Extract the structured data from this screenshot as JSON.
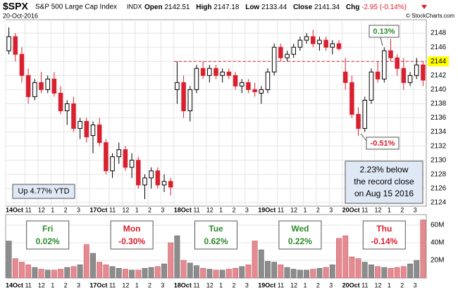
{
  "header": {
    "symbol": "$SPX",
    "name": "S&P 500 Large Cap Index",
    "exchange": "INDX",
    "date": "20-Oct-2016",
    "open_label": "Open",
    "open": "2142.51",
    "high_label": "High",
    "high": "2147.18",
    "low_label": "Low",
    "low": "2133.44",
    "close_label": "Close",
    "close": "2141.34",
    "chg_label": "Chg",
    "chg": "-2.95 (-0.14%)",
    "brand": "© StockCharts.com"
  },
  "chart_data": [
    {
      "type": "candlestick",
      "xlim": [
        0,
        65
      ],
      "ylim": [
        2123.5,
        2149.9
      ],
      "yticks": [
        2124,
        2126,
        2128,
        2130,
        2132,
        2134,
        2136,
        2138,
        2140,
        2142,
        2144,
        2146,
        2148
      ],
      "xticks": [
        {
          "value": 0,
          "label": "14Oct"
        },
        {
          "value": 3,
          "label": "11"
        },
        {
          "value": 5,
          "label": "12"
        },
        {
          "value": 7,
          "label": "1"
        },
        {
          "value": 9,
          "label": "2"
        },
        {
          "value": 11,
          "label": "3"
        },
        {
          "value": 13,
          "label": "17Oct"
        },
        {
          "value": 16,
          "label": "11"
        },
        {
          "value": 18,
          "label": "12"
        },
        {
          "value": 20,
          "label": "1"
        },
        {
          "value": 22,
          "label": "2"
        },
        {
          "value": 24,
          "label": "3"
        },
        {
          "value": 26,
          "label": "18Oct"
        },
        {
          "value": 29,
          "label": "11"
        },
        {
          "value": 31,
          "label": "12"
        },
        {
          "value": 33,
          "label": "1"
        },
        {
          "value": 35,
          "label": "2"
        },
        {
          "value": 37,
          "label": "3"
        },
        {
          "value": 39,
          "label": "19Oct"
        },
        {
          "value": 42,
          "label": "11"
        },
        {
          "value": 44,
          "label": "12"
        },
        {
          "value": 46,
          "label": "1"
        },
        {
          "value": 48,
          "label": "2"
        },
        {
          "value": 50,
          "label": "3"
        },
        {
          "value": 52,
          "label": "20Oct"
        },
        {
          "value": 55,
          "label": "11"
        },
        {
          "value": 57,
          "label": "12"
        },
        {
          "value": 59,
          "label": "1"
        },
        {
          "value": 61,
          "label": "2"
        },
        {
          "value": 63,
          "label": "3"
        }
      ],
      "up_color": "#000000",
      "down_color": "#d9202e",
      "grid": true,
      "candles": [
        [
          2145.5,
          2148.8,
          2145,
          2147.5
        ],
        [
          2147.5,
          2148,
          2144,
          2145
        ],
        [
          2145,
          2146,
          2141,
          2142
        ],
        [
          2142,
          2143,
          2138,
          2139
        ],
        [
          2139,
          2141.5,
          2138.5,
          2141
        ],
        [
          2141,
          2142.5,
          2139.5,
          2140
        ],
        [
          2140,
          2142,
          2139.5,
          2141.5
        ],
        [
          2141.5,
          2142.5,
          2139,
          2139.5
        ],
        [
          2139.5,
          2140.5,
          2136.5,
          2137
        ],
        [
          2137,
          2138.5,
          2135,
          2138
        ],
        [
          2138,
          2139,
          2134,
          2134.5
        ],
        [
          2134.5,
          2136,
          2133,
          2135.5
        ],
        [
          2135.5,
          2136,
          2132.5,
          2133.3
        ],
        [
          2133.5,
          2135.5,
          2131,
          2135
        ],
        [
          2135,
          2136,
          2132,
          2132.5
        ],
        [
          2132.5,
          2133,
          2128,
          2128.5
        ],
        [
          2128.5,
          2131,
          2127.5,
          2130.5
        ],
        [
          2130.5,
          2132.5,
          2129.5,
          2131.5
        ],
        [
          2131.5,
          2132,
          2128.5,
          2129
        ],
        [
          2129,
          2131,
          2127.5,
          2130
        ],
        [
          2130,
          2130.5,
          2126,
          2126.5
        ],
        [
          2126.5,
          2128,
          2124.5,
          2127.5
        ],
        [
          2127.5,
          2129,
          2126,
          2128.5
        ],
        [
          2128.5,
          2129,
          2126,
          2126.5
        ],
        [
          2126.5,
          2128,
          2125.5,
          2127
        ],
        [
          2127,
          2127.5,
          2125,
          2126.2
        ],
        [
          2140,
          2144,
          2138,
          2141
        ],
        [
          2141,
          2142,
          2136,
          2137
        ],
        [
          2137,
          2140.5,
          2135.5,
          2140
        ],
        [
          2140,
          2143.5,
          2139.5,
          2143
        ],
        [
          2143,
          2144,
          2141.5,
          2142
        ],
        [
          2142,
          2143.5,
          2141,
          2143
        ],
        [
          2143,
          2143.5,
          2141.5,
          2142
        ],
        [
          2142,
          2143,
          2141,
          2142.5
        ],
        [
          2142.5,
          2143,
          2141.5,
          2142
        ],
        [
          2142,
          2142.5,
          2140,
          2140.5
        ],
        [
          2140.5,
          2141.5,
          2139.5,
          2141
        ],
        [
          2141,
          2141.5,
          2139.5,
          2140
        ],
        [
          2140,
          2141,
          2139,
          2139.7
        ],
        [
          2139.5,
          2140.5,
          2138,
          2140
        ],
        [
          2140,
          2143,
          2139.5,
          2142.5
        ],
        [
          2142.5,
          2146.5,
          2142,
          2146
        ],
        [
          2146,
          2146.5,
          2144,
          2144.5
        ],
        [
          2144.5,
          2145.5,
          2144,
          2145
        ],
        [
          2145,
          2146.5,
          2144.5,
          2146
        ],
        [
          2146,
          2147.5,
          2145.5,
          2147
        ],
        [
          2147,
          2148,
          2146.5,
          2147.5
        ],
        [
          2147.5,
          2148.5,
          2146,
          2146.5
        ],
        [
          2146.5,
          2147.5,
          2145.5,
          2147
        ],
        [
          2147,
          2147.5,
          2145.5,
          2146
        ],
        [
          2146,
          2147,
          2145,
          2146.5
        ],
        [
          2146.5,
          2147,
          2145.5,
          2145.8
        ],
        [
          2142.5,
          2144.5,
          2140,
          2141
        ],
        [
          2141,
          2142,
          2136,
          2136.5
        ],
        [
          2136.5,
          2137.5,
          2133.44,
          2134.5
        ],
        [
          2134.5,
          2139,
          2134,
          2138.5
        ],
        [
          2138.5,
          2143,
          2138,
          2142.5
        ],
        [
          2142.5,
          2144,
          2141,
          2141.5
        ],
        [
          2141.5,
          2146,
          2141,
          2145.5
        ],
        [
          2145.5,
          2147.18,
          2144,
          2144.5
        ],
        [
          2144.5,
          2145,
          2142,
          2143
        ],
        [
          2143,
          2144.5,
          2140,
          2141
        ],
        [
          2141,
          2142.5,
          2140.5,
          2142
        ],
        [
          2142,
          2144.5,
          2141.5,
          2143.5
        ],
        [
          2143.5,
          2144,
          2140.5,
          2141.34
        ]
      ],
      "reference_line": {
        "value": 2144,
        "color": "#d9202e",
        "label_color": "#ffff00"
      },
      "annotations": {
        "high": "0.13%",
        "low": "-0.51%",
        "record": [
          "2.23% below",
          "the record close",
          "on Aug 15 2016"
        ],
        "ytd": "Up 4.77% YTD"
      }
    },
    {
      "type": "volume",
      "xlim": [
        0,
        65
      ],
      "ylim": [
        0,
        72000000
      ],
      "yticks": [
        {
          "value": 20000000,
          "label": "20M"
        },
        {
          "value": 40000000,
          "label": "40M"
        },
        {
          "value": 60000000,
          "label": "60M"
        }
      ],
      "up_color": "#8c8c8c",
      "down_color": "#e58a90",
      "values": [
        42000000,
        22000000,
        18000000,
        15000000,
        12000000,
        10000000,
        9000000,
        9000000,
        10000000,
        12000000,
        13000000,
        15000000,
        38000000,
        28000000,
        18000000,
        15000000,
        13000000,
        11000000,
        10000000,
        9000000,
        9000000,
        11000000,
        12000000,
        13000000,
        16000000,
        40000000,
        48000000,
        20000000,
        17000000,
        14000000,
        11000000,
        10000000,
        9000000,
        9000000,
        10000000,
        11000000,
        13000000,
        15000000,
        42000000,
        32000000,
        19000000,
        18000000,
        15000000,
        12000000,
        10000000,
        9000000,
        9000000,
        10000000,
        11000000,
        12000000,
        15000000,
        45000000,
        48000000,
        24000000,
        22000000,
        18000000,
        15000000,
        13000000,
        12000000,
        11000000,
        12000000,
        13000000,
        16000000,
        20000000,
        66000000
      ],
      "day_labels": [
        {
          "day": "Fri",
          "change": "0.02%",
          "color": "#2e8b2e"
        },
        {
          "day": "Mon",
          "change": "-0.30%",
          "color": "#d9202e"
        },
        {
          "day": "Tue",
          "change": "0.62%",
          "color": "#2e8b2e"
        },
        {
          "day": "Wed",
          "change": "0.22%",
          "color": "#2e8b2e"
        },
        {
          "day": "Thu",
          "change": "-0.14%",
          "color": "#d9202e"
        }
      ]
    }
  ]
}
